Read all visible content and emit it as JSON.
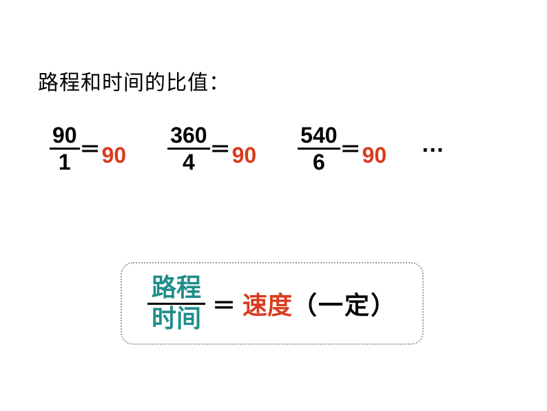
{
  "colors": {
    "text": "#000000",
    "result": "#d93b1f",
    "frac_teal": "#1f8e8a",
    "speed_red": "#d93b1f",
    "border_dotted": "#9a9a9a",
    "background": "#ffffff"
  },
  "heading": "路程和时间的比值：",
  "ratios": [
    {
      "numerator": "90",
      "denominator": "1",
      "equals": "＝",
      "result": "90"
    },
    {
      "numerator": "360",
      "denominator": "4",
      "equals": "＝",
      "result": "90"
    },
    {
      "numerator": "540",
      "denominator": "6",
      "equals": "＝",
      "result": "90"
    }
  ],
  "ellipsis": "…",
  "formula": {
    "numerator": "路程",
    "denominator": "时间",
    "equals": "＝",
    "speed": "速度",
    "constant": "（一定）"
  },
  "fonts": {
    "heading_size": 30,
    "ratio_size": 32,
    "formula_size": 36
  }
}
